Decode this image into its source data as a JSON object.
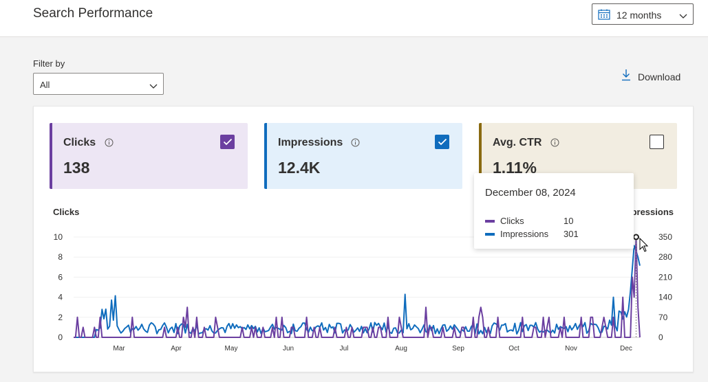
{
  "header": {
    "title": "Search Performance",
    "period_label": "12 months"
  },
  "filter": {
    "label": "Filter by",
    "value": "All"
  },
  "download": {
    "label": "Download"
  },
  "metrics": [
    {
      "label": "Clicks",
      "value": "138",
      "checked": true,
      "color": "#6b3fa0"
    },
    {
      "label": "Impressions",
      "value": "12.4K",
      "checked": true,
      "color": "#0f6cbd"
    },
    {
      "label": "Avg. CTR",
      "value": "1.11%",
      "checked": false,
      "color": "#8a6a10"
    }
  ],
  "tooltip": {
    "date": "December 08, 2024",
    "rows": [
      {
        "name": "Clicks",
        "value": "10",
        "color": "#6b3fa0"
      },
      {
        "name": "Impressions",
        "value": "301",
        "color": "#0f6cbd"
      }
    ]
  },
  "chart_data": {
    "type": "line",
    "left_axis_label": "Clicks",
    "right_axis_label": "Impressions",
    "left_ticks": [
      "10",
      "8",
      "6",
      "4",
      "2",
      "0"
    ],
    "right_ticks": [
      "350",
      "280",
      "210",
      "140",
      "70",
      "0"
    ],
    "ylim_left": [
      0,
      10
    ],
    "ylim_right": [
      0,
      350
    ],
    "months": [
      "Mar",
      "Apr",
      "May",
      "Jun",
      "Jul",
      "Aug",
      "Sep",
      "Oct",
      "Nov",
      "Dec"
    ],
    "series": [
      {
        "name": "Clicks",
        "color": "#6b3fa0",
        "axis": "left",
        "values": [
          0,
          0,
          0,
          0,
          0,
          0,
          0,
          0,
          0,
          0,
          0,
          0,
          0,
          0,
          0,
          0,
          0,
          0,
          0,
          0,
          0,
          0,
          0,
          0,
          0,
          0,
          0,
          0,
          0,
          0,
          0,
          0,
          0,
          0,
          0,
          0,
          0,
          0,
          0,
          0,
          0,
          0,
          0,
          0,
          0,
          0,
          0,
          0,
          0,
          0,
          0,
          0,
          2,
          0,
          0,
          0,
          0,
          0,
          0,
          0,
          0,
          0,
          0,
          0,
          0,
          0,
          0,
          0,
          1,
          0,
          0,
          0,
          0,
          0,
          0,
          0,
          0,
          0,
          0,
          0,
          1,
          0,
          0,
          0,
          0,
          0,
          0,
          0,
          0,
          0,
          0,
          0,
          0,
          0,
          0,
          0,
          0,
          0,
          0,
          0,
          0,
          0,
          0,
          0,
          0,
          0,
          1,
          0,
          0,
          0,
          0,
          0,
          0,
          0,
          0,
          0,
          0,
          0,
          0,
          0,
          0,
          0,
          0,
          0,
          0,
          0,
          0,
          0,
          0,
          0,
          0,
          0,
          1,
          0,
          0,
          0,
          0,
          0,
          0,
          0,
          0,
          0,
          0,
          0,
          0,
          0,
          0,
          0,
          0,
          0,
          0,
          0,
          0,
          0,
          0,
          0,
          0,
          0,
          0,
          0,
          0,
          0,
          0,
          0,
          0,
          0,
          0,
          0,
          0,
          0,
          0,
          0,
          0,
          0,
          0,
          0,
          0,
          0,
          0,
          0,
          0,
          0,
          0,
          0,
          0,
          0,
          0,
          0,
          0,
          0,
          0,
          0,
          0,
          0,
          0,
          0,
          0,
          0,
          0,
          0,
          0,
          0,
          0,
          0,
          0,
          0,
          0,
          0,
          0,
          0,
          0,
          0,
          0,
          0,
          0,
          0,
          0,
          0,
          0,
          0,
          0,
          0,
          0,
          0,
          0,
          0,
          0,
          0,
          0,
          0,
          0,
          0,
          0,
          0,
          0,
          0,
          0,
          0,
          0,
          0,
          0,
          0,
          0,
          0,
          0,
          0,
          0,
          0,
          0,
          0,
          0,
          0,
          0,
          0,
          0,
          0,
          0,
          0,
          0,
          0,
          0,
          0,
          0,
          0,
          0,
          0,
          0,
          0,
          0,
          0,
          0,
          0,
          0,
          0,
          0,
          0,
          0,
          0,
          0,
          0,
          0,
          0,
          0,
          0,
          0,
          0,
          0,
          0,
          0,
          0,
          0,
          0,
          0,
          0,
          0,
          0,
          0,
          0,
          0,
          0,
          0,
          0,
          0,
          0,
          0,
          0,
          0,
          0,
          0,
          0,
          0,
          0,
          0,
          0,
          0,
          0,
          0,
          0,
          0,
          0,
          0,
          0,
          0,
          0,
          0,
          0,
          0,
          0,
          0,
          0,
          0,
          0,
          0,
          0,
          0,
          0,
          0,
          0,
          0,
          0,
          0,
          0,
          0,
          0,
          0,
          0,
          0,
          0,
          0,
          0,
          0,
          0,
          0,
          0,
          0,
          0,
          0,
          0,
          0,
          0,
          0,
          0,
          0,
          0,
          0,
          0,
          0,
          0,
          0,
          0,
          0,
          0,
          0,
          0,
          0,
          0,
          10,
          0,
          0
        ]
      },
      {
        "name": "Impressions",
        "color": "#0f6cbd",
        "axis": "right",
        "values": [
          0
        ]
      }
    ]
  }
}
